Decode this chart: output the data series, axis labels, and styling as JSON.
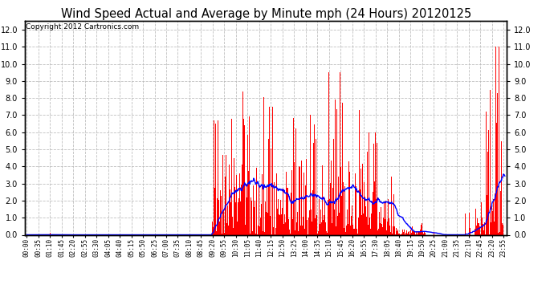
{
  "title": "Wind Speed Actual and Average by Minute mph (24 Hours) 20120125",
  "copyright": "Copyright 2012 Cartronics.com",
  "ylim": [
    0.0,
    12.5
  ],
  "yticks": [
    0.0,
    1.0,
    2.0,
    3.0,
    4.0,
    5.0,
    6.0,
    7.0,
    8.0,
    9.0,
    10.0,
    11.0,
    12.0
  ],
  "bar_color": "#ff0000",
  "line_color": "#0000ff",
  "bg_color": "#ffffff",
  "grid_color": "#b8b8b8",
  "title_fontsize": 10.5,
  "copyright_fontsize": 6.5
}
